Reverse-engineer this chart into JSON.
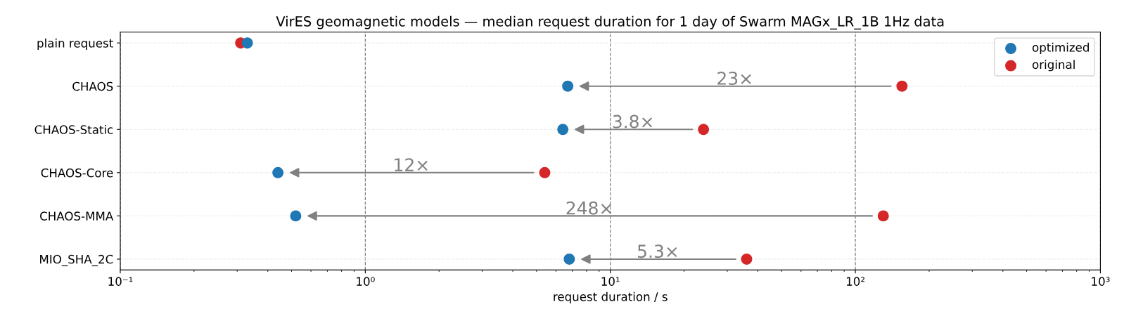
{
  "chart_data": {
    "type": "scatter",
    "orientation": "horizontal",
    "title": "VirES geomagnetic models — median request duration for 1 day of Swarm MAGx_LR_1B 1Hz data",
    "xlabel": "request duration / s",
    "categories": [
      "plain request",
      "CHAOS",
      "CHAOS-Static",
      "CHAOS-Core",
      "CHAOS-MMA",
      "MIO_SHA_2C"
    ],
    "series": [
      {
        "name": "optimized",
        "color": "#1f77b4",
        "values": [
          0.33,
          6.7,
          6.4,
          0.44,
          0.52,
          6.8
        ]
      },
      {
        "name": "original",
        "color": "#d62728",
        "values": [
          0.31,
          155,
          24,
          5.4,
          130,
          36
        ]
      }
    ],
    "log": "x",
    "xlim": [
      0.1,
      1000
    ],
    "xticks": [
      {
        "value": 0.1,
        "label": "10⁻¹"
      },
      {
        "value": 1,
        "label": "10⁰"
      },
      {
        "value": 10,
        "label": "10¹"
      },
      {
        "value": 100,
        "label": "10²"
      },
      {
        "value": 1000,
        "label": "10³"
      }
    ],
    "grid": true,
    "legend": "top right",
    "marker": "circle",
    "annotations": [
      "23×",
      "3.8×",
      "12×",
      "248×",
      "5.3×"
    ]
  }
}
